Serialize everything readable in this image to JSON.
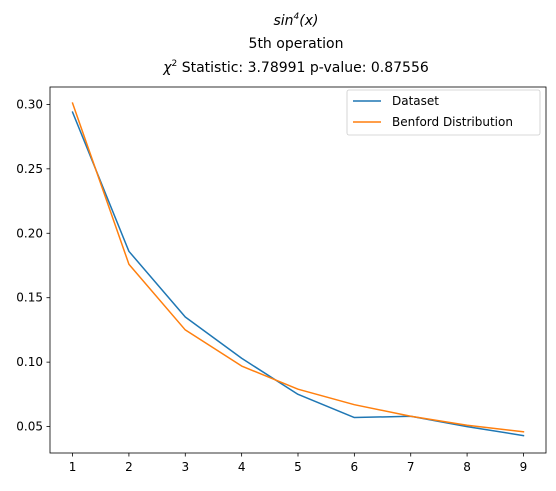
{
  "chart_data": {
    "type": "line",
    "title": {
      "line1_base": "sin",
      "line1_sup": "4",
      "line1_rest": "(x)",
      "line2": "5th operation",
      "line3_base": "χ",
      "line3_sup": "2",
      "line3_rest": " Statistic: 3.78991 p-value: 0.87556"
    },
    "xlabel": "",
    "ylabel": "",
    "x": [
      1,
      2,
      3,
      4,
      5,
      6,
      7,
      8,
      9
    ],
    "xlim": [
      0.6,
      9.4
    ],
    "ylim": [
      0.0295,
      0.3135
    ],
    "xticks": [
      1,
      2,
      3,
      4,
      5,
      6,
      7,
      8,
      9
    ],
    "yticks": [
      0.05,
      0.1,
      0.15,
      0.2,
      0.25,
      0.3
    ],
    "ytick_labels": [
      "0.05",
      "0.10",
      "0.15",
      "0.20",
      "0.25",
      "0.30"
    ],
    "grid": false,
    "legend": "top-right",
    "series": [
      {
        "name": "Dataset",
        "color": "#1f77b4",
        "values": [
          0.294,
          0.186,
          0.135,
          0.103,
          0.075,
          0.057,
          0.058,
          0.05,
          0.043
        ]
      },
      {
        "name": "Benford Distribution",
        "color": "#ff7f0e",
        "values": [
          0.301,
          0.176,
          0.125,
          0.097,
          0.079,
          0.067,
          0.058,
          0.051,
          0.046
        ]
      }
    ]
  }
}
